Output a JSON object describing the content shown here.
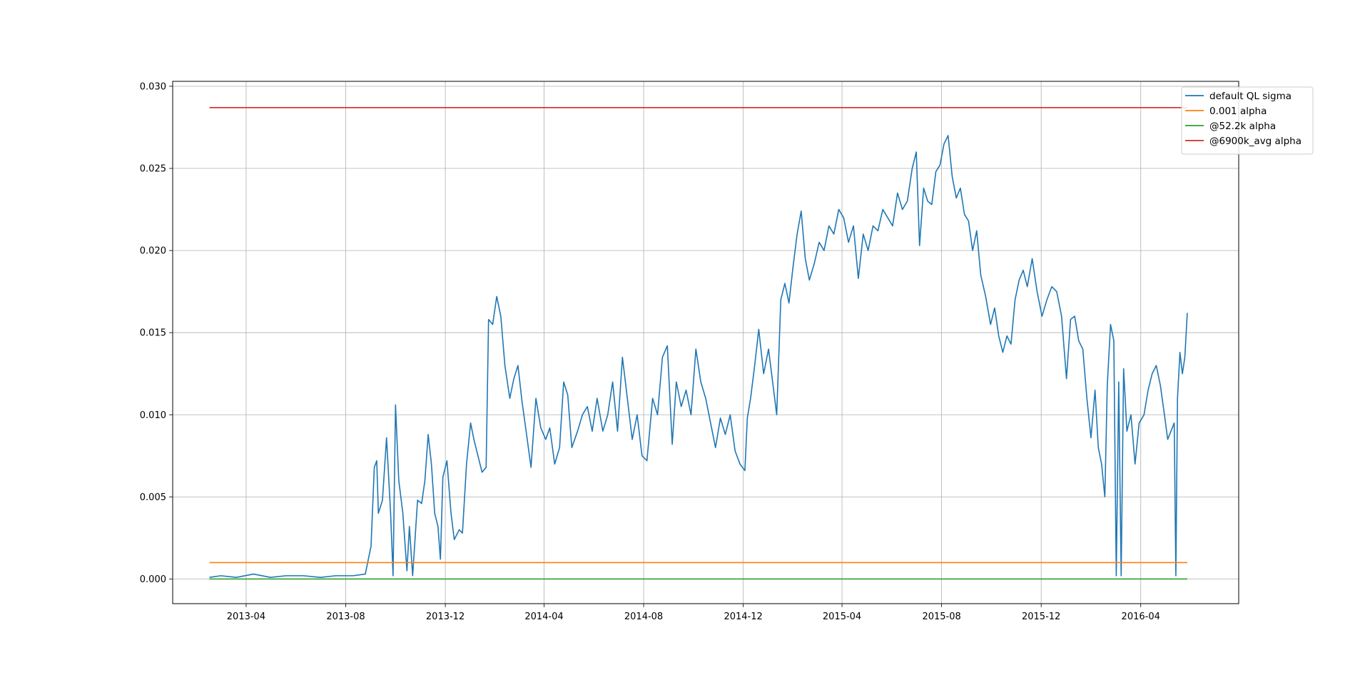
{
  "chart_data": {
    "type": "line",
    "title": "",
    "xlabel": "",
    "ylabel": "",
    "xlim": [
      "2013-01-01",
      "2016-07-30"
    ],
    "ylim": [
      -0.0015,
      0.0303
    ],
    "grid": true,
    "legend_position": "top-right",
    "x_ticks": [
      "2013-04",
      "2013-08",
      "2013-12",
      "2014-04",
      "2014-08",
      "2014-12",
      "2015-04",
      "2015-08",
      "2015-12",
      "2016-04"
    ],
    "y_ticks": [
      "0.000",
      "0.005",
      "0.010",
      "0.015",
      "0.020",
      "0.025",
      "0.030"
    ],
    "series": [
      {
        "name": "default QL sigma",
        "color": "#1f77b4",
        "points": [
          [
            "2013-02-15",
            0.0001
          ],
          [
            "2013-03-01",
            0.0002
          ],
          [
            "2013-03-20",
            0.0001
          ],
          [
            "2013-04-10",
            0.0003
          ],
          [
            "2013-05-01",
            0.0001
          ],
          [
            "2013-05-20",
            0.0002
          ],
          [
            "2013-06-10",
            0.0002
          ],
          [
            "2013-07-01",
            0.0001
          ],
          [
            "2013-07-20",
            0.0002
          ],
          [
            "2013-08-10",
            0.0002
          ],
          [
            "2013-08-25",
            0.0003
          ],
          [
            "2013-09-01",
            0.002
          ],
          [
            "2013-09-05",
            0.0068
          ],
          [
            "2013-09-08",
            0.0072
          ],
          [
            "2013-09-10",
            0.004
          ],
          [
            "2013-09-15",
            0.0048
          ],
          [
            "2013-09-20",
            0.0086
          ],
          [
            "2013-09-25",
            0.004
          ],
          [
            "2013-09-28",
            0.0002
          ],
          [
            "2013-10-01",
            0.0106
          ],
          [
            "2013-10-05",
            0.006
          ],
          [
            "2013-10-10",
            0.004
          ],
          [
            "2013-10-15",
            0.0005
          ],
          [
            "2013-10-18",
            0.0032
          ],
          [
            "2013-10-22",
            0.0002
          ],
          [
            "2013-10-28",
            0.0048
          ],
          [
            "2013-11-02",
            0.0046
          ],
          [
            "2013-11-06",
            0.006
          ],
          [
            "2013-11-10",
            0.0088
          ],
          [
            "2013-11-14",
            0.007
          ],
          [
            "2013-11-18",
            0.004
          ],
          [
            "2013-11-22",
            0.0032
          ],
          [
            "2013-11-25",
            0.0012
          ],
          [
            "2013-11-28",
            0.0062
          ],
          [
            "2013-12-03",
            0.0072
          ],
          [
            "2013-12-08",
            0.004
          ],
          [
            "2013-12-12",
            0.0024
          ],
          [
            "2013-12-18",
            0.003
          ],
          [
            "2013-12-22",
            0.0028
          ],
          [
            "2013-12-27",
            0.007
          ],
          [
            "2014-01-01",
            0.0095
          ],
          [
            "2014-01-05",
            0.0085
          ],
          [
            "2014-01-10",
            0.0075
          ],
          [
            "2014-01-15",
            0.0065
          ],
          [
            "2014-01-20",
            0.0068
          ],
          [
            "2014-01-23",
            0.0158
          ],
          [
            "2014-01-28",
            0.0155
          ],
          [
            "2014-02-02",
            0.0172
          ],
          [
            "2014-02-07",
            0.016
          ],
          [
            "2014-02-12",
            0.013
          ],
          [
            "2014-02-18",
            0.011
          ],
          [
            "2014-02-23",
            0.0122
          ],
          [
            "2014-02-28",
            0.013
          ],
          [
            "2014-03-05",
            0.0108
          ],
          [
            "2014-03-10",
            0.009
          ],
          [
            "2014-03-16",
            0.0068
          ],
          [
            "2014-03-22",
            0.011
          ],
          [
            "2014-03-28",
            0.0092
          ],
          [
            "2014-04-03",
            0.0085
          ],
          [
            "2014-04-08",
            0.0092
          ],
          [
            "2014-04-14",
            0.007
          ],
          [
            "2014-04-20",
            0.008
          ],
          [
            "2014-04-25",
            0.012
          ],
          [
            "2014-04-30",
            0.0112
          ],
          [
            "2014-05-05",
            0.008
          ],
          [
            "2014-05-12",
            0.009
          ],
          [
            "2014-05-18",
            0.01
          ],
          [
            "2014-05-24",
            0.0105
          ],
          [
            "2014-05-30",
            0.009
          ],
          [
            "2014-06-05",
            0.011
          ],
          [
            "2014-06-12",
            0.009
          ],
          [
            "2014-06-18",
            0.01
          ],
          [
            "2014-06-24",
            0.012
          ],
          [
            "2014-06-30",
            0.009
          ],
          [
            "2014-07-06",
            0.0135
          ],
          [
            "2014-07-12",
            0.011
          ],
          [
            "2014-07-18",
            0.0085
          ],
          [
            "2014-07-24",
            0.01
          ],
          [
            "2014-07-30",
            0.0075
          ],
          [
            "2014-08-05",
            0.0072
          ],
          [
            "2014-08-12",
            0.011
          ],
          [
            "2014-08-18",
            0.01
          ],
          [
            "2014-08-24",
            0.0135
          ],
          [
            "2014-08-30",
            0.0142
          ],
          [
            "2014-09-05",
            0.0082
          ],
          [
            "2014-09-10",
            0.012
          ],
          [
            "2014-09-16",
            0.0105
          ],
          [
            "2014-09-22",
            0.0115
          ],
          [
            "2014-09-28",
            0.01
          ],
          [
            "2014-10-04",
            0.014
          ],
          [
            "2014-10-10",
            0.012
          ],
          [
            "2014-10-16",
            0.011
          ],
          [
            "2014-10-22",
            0.0095
          ],
          [
            "2014-10-28",
            0.008
          ],
          [
            "2014-11-03",
            0.0098
          ],
          [
            "2014-11-09",
            0.0088
          ],
          [
            "2014-11-15",
            0.01
          ],
          [
            "2014-11-21",
            0.0078
          ],
          [
            "2014-11-27",
            0.007
          ],
          [
            "2014-12-03",
            0.0066
          ],
          [
            "2014-12-06",
            0.0098
          ],
          [
            "2014-12-10",
            0.011
          ],
          [
            "2014-12-15",
            0.013
          ],
          [
            "2014-12-20",
            0.0152
          ],
          [
            "2014-12-26",
            0.0125
          ],
          [
            "2015-01-01",
            0.014
          ],
          [
            "2015-01-06",
            0.012
          ],
          [
            "2015-01-11",
            0.01
          ],
          [
            "2015-01-16",
            0.017
          ],
          [
            "2015-01-21",
            0.018
          ],
          [
            "2015-01-26",
            0.0168
          ],
          [
            "2015-01-31",
            0.019
          ],
          [
            "2015-02-05",
            0.021
          ],
          [
            "2015-02-10",
            0.0224
          ],
          [
            "2015-02-15",
            0.0195
          ],
          [
            "2015-02-20",
            0.0182
          ],
          [
            "2015-02-26",
            0.0192
          ],
          [
            "2015-03-04",
            0.0205
          ],
          [
            "2015-03-10",
            0.02
          ],
          [
            "2015-03-16",
            0.0215
          ],
          [
            "2015-03-22",
            0.021
          ],
          [
            "2015-03-28",
            0.0225
          ],
          [
            "2015-04-03",
            0.022
          ],
          [
            "2015-04-09",
            0.0205
          ],
          [
            "2015-04-15",
            0.0215
          ],
          [
            "2015-04-21",
            0.0183
          ],
          [
            "2015-04-27",
            0.021
          ],
          [
            "2015-05-03",
            0.02
          ],
          [
            "2015-05-09",
            0.0215
          ],
          [
            "2015-05-15",
            0.0212
          ],
          [
            "2015-05-21",
            0.0225
          ],
          [
            "2015-05-27",
            0.022
          ],
          [
            "2015-06-02",
            0.0215
          ],
          [
            "2015-06-08",
            0.0235
          ],
          [
            "2015-06-14",
            0.0225
          ],
          [
            "2015-06-20",
            0.023
          ],
          [
            "2015-06-26",
            0.025
          ],
          [
            "2015-07-01",
            0.026
          ],
          [
            "2015-07-05",
            0.0203
          ],
          [
            "2015-07-10",
            0.0238
          ],
          [
            "2015-07-15",
            0.023
          ],
          [
            "2015-07-20",
            0.0228
          ],
          [
            "2015-07-25",
            0.0248
          ],
          [
            "2015-07-30",
            0.0252
          ],
          [
            "2015-08-04",
            0.0265
          ],
          [
            "2015-08-09",
            0.027
          ],
          [
            "2015-08-14",
            0.0245
          ],
          [
            "2015-08-19",
            0.0232
          ],
          [
            "2015-08-24",
            0.0238
          ],
          [
            "2015-08-29",
            0.0222
          ],
          [
            "2015-09-03",
            0.0218
          ],
          [
            "2015-09-08",
            0.02
          ],
          [
            "2015-09-13",
            0.0212
          ],
          [
            "2015-09-18",
            0.0185
          ],
          [
            "2015-09-24",
            0.0172
          ],
          [
            "2015-09-30",
            0.0155
          ],
          [
            "2015-10-05",
            0.0165
          ],
          [
            "2015-10-10",
            0.0148
          ],
          [
            "2015-10-15",
            0.0138
          ],
          [
            "2015-10-20",
            0.0148
          ],
          [
            "2015-10-25",
            0.0143
          ],
          [
            "2015-10-30",
            0.017
          ],
          [
            "2015-11-04",
            0.0182
          ],
          [
            "2015-11-09",
            0.0188
          ],
          [
            "2015-11-14",
            0.0178
          ],
          [
            "2015-11-20",
            0.0195
          ],
          [
            "2015-11-26",
            0.0175
          ],
          [
            "2015-12-02",
            0.016
          ],
          [
            "2015-12-08",
            0.017
          ],
          [
            "2015-12-14",
            0.0178
          ],
          [
            "2015-12-20",
            0.0175
          ],
          [
            "2015-12-26",
            0.016
          ],
          [
            "2016-01-01",
            0.0122
          ],
          [
            "2016-01-06",
            0.0158
          ],
          [
            "2016-01-11",
            0.016
          ],
          [
            "2016-01-16",
            0.0145
          ],
          [
            "2016-01-21",
            0.014
          ],
          [
            "2016-01-26",
            0.011
          ],
          [
            "2016-01-31",
            0.0086
          ],
          [
            "2016-02-05",
            0.0115
          ],
          [
            "2016-02-09",
            0.008
          ],
          [
            "2016-02-13",
            0.007
          ],
          [
            "2016-02-17",
            0.005
          ],
          [
            "2016-02-20",
            0.0118
          ],
          [
            "2016-02-24",
            0.0155
          ],
          [
            "2016-02-28",
            0.0145
          ],
          [
            "2016-03-02",
            0.0002
          ],
          [
            "2016-03-05",
            0.012
          ],
          [
            "2016-03-08",
            0.0002
          ],
          [
            "2016-03-11",
            0.0128
          ],
          [
            "2016-03-15",
            0.009
          ],
          [
            "2016-03-20",
            0.01
          ],
          [
            "2016-03-25",
            0.007
          ],
          [
            "2016-03-30",
            0.0095
          ],
          [
            "2016-04-05",
            0.01
          ],
          [
            "2016-04-10",
            0.0115
          ],
          [
            "2016-04-15",
            0.0125
          ],
          [
            "2016-04-20",
            0.013
          ],
          [
            "2016-04-25",
            0.0118
          ],
          [
            "2016-04-30",
            0.01
          ],
          [
            "2016-05-04",
            0.0085
          ],
          [
            "2016-05-08",
            0.009
          ],
          [
            "2016-05-12",
            0.0095
          ],
          [
            "2016-05-14",
            0.0002
          ],
          [
            "2016-05-16",
            0.011
          ],
          [
            "2016-05-19",
            0.0138
          ],
          [
            "2016-05-22",
            0.0125
          ],
          [
            "2016-05-25",
            0.0135
          ],
          [
            "2016-05-28",
            0.0162
          ]
        ]
      },
      {
        "name": "0.001 alpha",
        "color": "#ff7f0e",
        "points": [
          [
            "2013-02-15",
            0.001
          ],
          [
            "2016-05-28",
            0.001
          ]
        ]
      },
      {
        "name": "@52.2k alpha",
        "color": "#2ca02c",
        "points": [
          [
            "2013-02-15",
            0.0
          ],
          [
            "2016-05-28",
            0.0
          ]
        ]
      },
      {
        "name": "@6900k_avg alpha",
        "color": "#d62728",
        "points": [
          [
            "2013-02-15",
            0.0287
          ],
          [
            "2016-05-28",
            0.0287
          ]
        ]
      }
    ]
  }
}
